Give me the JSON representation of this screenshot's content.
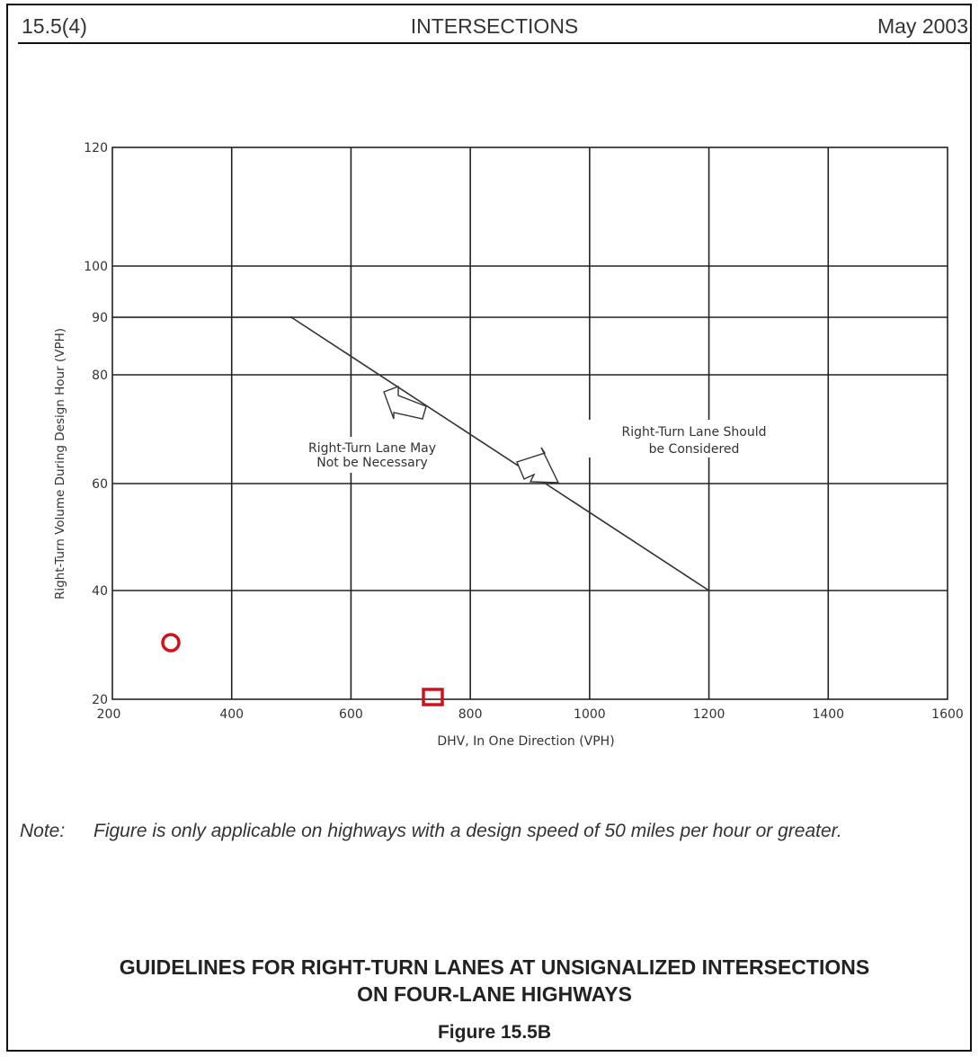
{
  "header": {
    "section": "15.5(4)",
    "title": "INTERSECTIONS",
    "date": "May 2003"
  },
  "chart_data": {
    "type": "line",
    "xlabel": "DHV, In One Direction (VPH)",
    "ylabel": "Right-Turn Volume During Design Hour (VPH)",
    "xlim": [
      200,
      1600
    ],
    "ylim": [
      20,
      120
    ],
    "x_ticks": [
      200,
      400,
      600,
      800,
      1000,
      1200,
      1400,
      1600
    ],
    "y_ticks": [
      20,
      40,
      60,
      80,
      90,
      100,
      120
    ],
    "grid": true,
    "series": [
      {
        "x": [
          200,
          500,
          1200
        ],
        "y": [
          90,
          90,
          40
        ]
      }
    ],
    "annotations": {
      "below": [
        "Right-Turn Lane May",
        "Not be Necessary"
      ],
      "above": [
        "Right-Turn Lane Should",
        "be Considered"
      ]
    },
    "colors": {
      "line": "#333333",
      "grid": "#222222",
      "marker": "#d0121b"
    }
  },
  "note": {
    "label": "Note:",
    "text": "Figure is only applicable on highways with a design speed of 50 miles per hour or greater."
  },
  "caption": {
    "line1": "GUIDELINES FOR RIGHT-TURN LANES AT UNSIGNALIZED INTERSECTIONS",
    "line2": "ON FOUR-LANE HIGHWAYS",
    "figure": "Figure 15.5B"
  }
}
